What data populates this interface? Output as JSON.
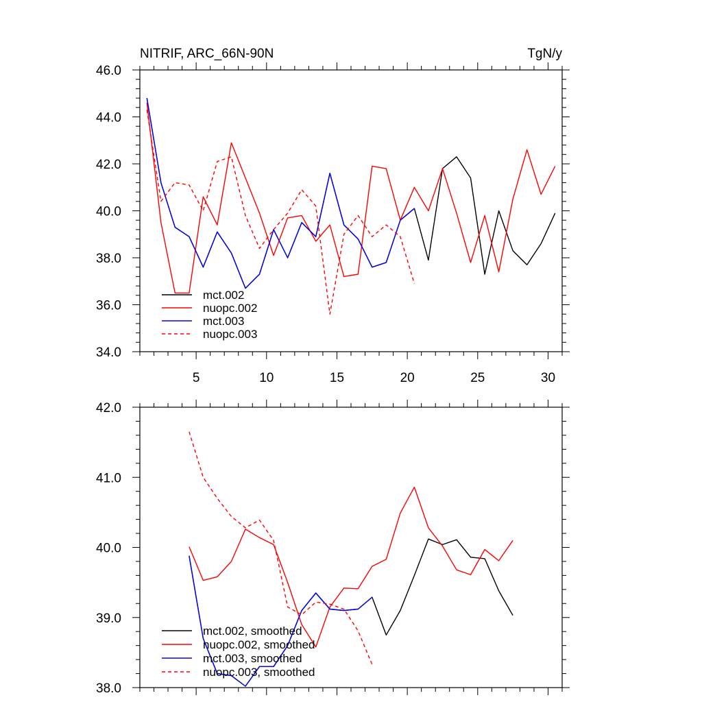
{
  "chart_data": [
    {
      "type": "line",
      "title": "NITRIF, ARC_66N-90N",
      "units": "TgN/y",
      "xlim": [
        1,
        31
      ],
      "ylim": [
        34,
        46
      ],
      "xticks": [
        5,
        10,
        15,
        20,
        25,
        30
      ],
      "xtick_labels": [
        "5",
        "10",
        "15",
        "20",
        "25",
        "30"
      ],
      "yticks": [
        34,
        36,
        38,
        40,
        42,
        44,
        46
      ],
      "ytick_labels": [
        "34.0",
        "36.0",
        "38.0",
        "40.0",
        "42.0",
        "44.0",
        "46.0"
      ],
      "series": [
        {
          "name": "mct.002",
          "color": "#000000",
          "dash": false,
          "x": [
            1.5,
            2.5,
            3.5,
            4.5,
            5.5,
            6.5,
            7.5,
            8.5,
            9.5,
            10.5,
            11.5,
            12.5,
            13.5,
            14.5,
            15.5,
            16.5,
            17.5,
            18.5,
            19.5,
            20.5,
            21.5,
            22.5,
            23.5,
            24.5,
            25.5,
            26.5,
            27.5,
            28.5,
            29.5,
            30.5
          ],
          "values": [
            44.8,
            41.2,
            39.3,
            38.9,
            37.6,
            39.1,
            38.2,
            36.7,
            37.3,
            39.2,
            38.0,
            39.5,
            38.9,
            41.6,
            39.4,
            38.8,
            37.6,
            37.8,
            39.6,
            40.1,
            37.9,
            41.8,
            42.3,
            41.4,
            37.3,
            40.0,
            38.3,
            37.7,
            38.6,
            39.9
          ]
        },
        {
          "name": "nuopc.002",
          "color": "#ff0000",
          "dash": false,
          "x": [
            1.5,
            2.5,
            3.5,
            4.5,
            5.5,
            6.5,
            7.5,
            8.5,
            9.5,
            10.5,
            11.5,
            12.5,
            13.5,
            14.5,
            15.5,
            16.5,
            17.5,
            18.5,
            19.5,
            20.5,
            21.5,
            22.5,
            23.5,
            24.5,
            25.5,
            26.5,
            27.5,
            28.5,
            29.5,
            30.5
          ],
          "values": [
            44.6,
            39.5,
            36.5,
            36.5,
            40.6,
            39.4,
            42.9,
            41.4,
            39.9,
            38.1,
            39.7,
            39.8,
            38.7,
            39.4,
            37.2,
            37.3,
            41.9,
            41.8,
            39.6,
            41.0,
            40.0,
            41.8,
            39.9,
            37.8,
            39.8,
            37.4,
            40.5,
            42.6,
            40.7,
            41.9
          ]
        },
        {
          "name": "mct.003",
          "color": "#0000ff",
          "dash": false,
          "x": [
            1.5,
            2.5,
            3.5,
            4.5,
            5.5,
            6.5,
            7.5,
            8.5,
            9.5,
            10.5,
            11.5,
            12.5,
            13.5,
            14.5,
            15.5,
            16.5,
            17.5,
            18.5,
            19.5,
            20.5
          ],
          "values": [
            44.8,
            41.2,
            39.3,
            38.9,
            37.6,
            39.1,
            38.2,
            36.7,
            37.3,
            39.2,
            38.0,
            39.5,
            38.9,
            41.6,
            39.4,
            38.8,
            37.6,
            37.8,
            39.6,
            40.1
          ]
        },
        {
          "name": "nuopc.003",
          "color": "#ff0000",
          "dash": true,
          "x": [
            1.5,
            2.5,
            3.5,
            4.5,
            5.5,
            6.5,
            7.5,
            8.5,
            9.5,
            10.5,
            11.5,
            12.5,
            13.5,
            14.5,
            15.5,
            16.5,
            17.5,
            18.5,
            19.5,
            20.5
          ],
          "values": [
            44.3,
            40.4,
            41.2,
            41.1,
            40.0,
            42.1,
            42.3,
            39.8,
            38.4,
            39.2,
            39.9,
            40.9,
            40.2,
            35.6,
            39.0,
            39.8,
            38.9,
            39.4,
            38.9,
            36.9
          ]
        }
      ],
      "legend": [
        "mct.002",
        "nuopc.002",
        "mct.003",
        "nuopc.003"
      ]
    },
    {
      "type": "line",
      "title": "",
      "xlim": [
        1,
        31
      ],
      "ylim": [
        38,
        42
      ],
      "xticks": [
        5,
        10,
        15,
        20,
        25,
        30
      ],
      "xtick_labels": [],
      "yticks": [
        38,
        39,
        40,
        41,
        42
      ],
      "ytick_labels": [
        "38.0",
        "39.0",
        "40.0",
        "41.0",
        "42.0"
      ],
      "series": [
        {
          "name": "mct.002, smoothed",
          "color": "#000000",
          "dash": false,
          "x": [
            4.5,
            5.5,
            6.5,
            7.5,
            8.5,
            9.5,
            10.5,
            11.5,
            12.5,
            13.5,
            14.5,
            15.5,
            16.5,
            17.5,
            18.5,
            19.5,
            20.5,
            21.5,
            22.5,
            23.5,
            24.5,
            25.5,
            26.5,
            27.5
          ],
          "values": [
            39.88,
            38.7,
            38.2,
            38.17,
            38.02,
            38.3,
            38.3,
            38.6,
            39.1,
            39.35,
            39.12,
            39.1,
            39.12,
            39.29,
            38.75,
            39.1,
            39.6,
            40.12,
            40.04,
            40.11,
            39.86,
            39.84,
            39.38,
            39.03
          ]
        },
        {
          "name": "nuopc.002, smoothed",
          "color": "#ff0000",
          "dash": false,
          "x": [
            4.5,
            5.5,
            6.5,
            7.5,
            8.5,
            9.5,
            10.5,
            11.5,
            12.5,
            13.5,
            14.5,
            15.5,
            16.5,
            17.5,
            18.5,
            19.5,
            20.5,
            21.5,
            22.5,
            23.5,
            24.5,
            25.5,
            26.5,
            27.5
          ],
          "values": [
            40.01,
            39.53,
            39.58,
            39.8,
            40.26,
            40.14,
            40.04,
            39.5,
            38.9,
            38.58,
            39.15,
            39.42,
            39.41,
            39.73,
            39.83,
            40.49,
            40.86,
            40.28,
            40.02,
            39.68,
            39.61,
            39.97,
            39.81,
            40.1
          ]
        },
        {
          "name": "mct.003, smoothed",
          "color": "#0000ff",
          "dash": false,
          "x": [
            4.5,
            5.5,
            6.5,
            7.5,
            8.5,
            9.5,
            10.5,
            11.5,
            12.5,
            13.5,
            14.5,
            15.5,
            16.5,
            17.5
          ],
          "values": [
            39.88,
            38.7,
            38.2,
            38.17,
            38.02,
            38.3,
            38.3,
            38.6,
            39.1,
            39.35,
            39.12,
            39.1,
            39.12,
            39.29
          ]
        },
        {
          "name": "nuopc.003, smoothed",
          "color": "#ff0000",
          "dash": true,
          "x": [
            4.5,
            5.5,
            6.5,
            7.5,
            8.5,
            9.5,
            10.5,
            11.5,
            12.5,
            13.5,
            14.5,
            15.5,
            16.5,
            17.5
          ],
          "values": [
            41.65,
            41.0,
            40.7,
            40.44,
            40.28,
            40.39,
            40.1,
            39.15,
            39.04,
            39.22,
            39.19,
            39.12,
            38.81,
            38.33
          ]
        }
      ],
      "legend": [
        "mct.002, smoothed",
        "nuopc.002, smoothed",
        "mct.003, smoothed",
        "nuopc.003, smoothed"
      ]
    }
  ]
}
